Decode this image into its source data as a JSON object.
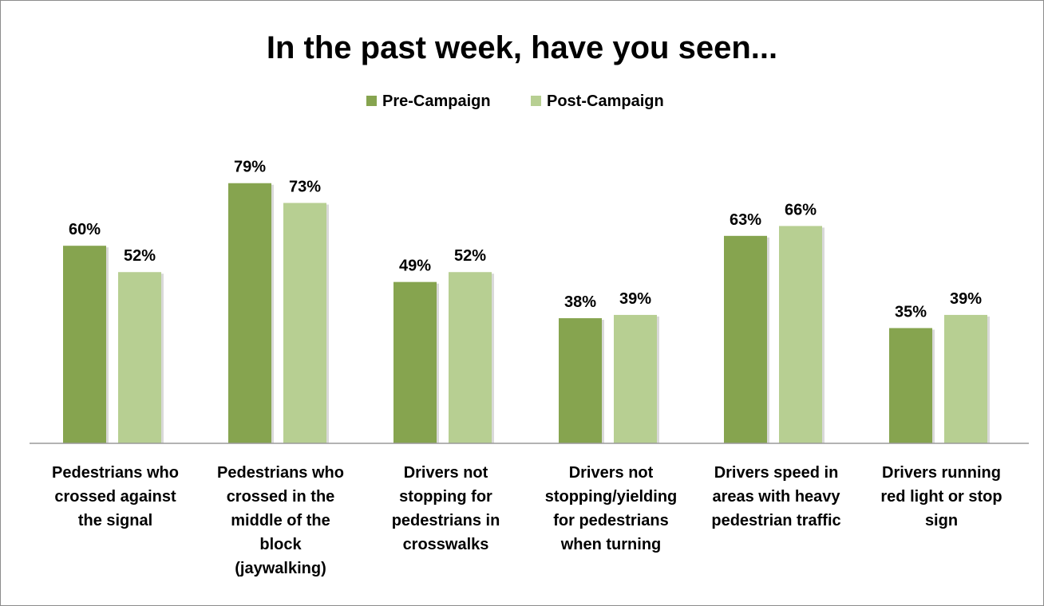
{
  "chart_data": {
    "type": "bar",
    "title": "In the past week, have you seen...",
    "xlabel": "",
    "ylabel": "",
    "ylim": [
      0,
      100
    ],
    "grid": false,
    "legend_position": "top",
    "value_suffix": "%",
    "categories": [
      "Pedestrians who crossed against the signal",
      "Pedestrians who crossed in the middle of the block (jaywalking)",
      "Drivers not stopping for pedestrians in crosswalks",
      "Drivers not stopping/yielding for pedestrians when turning",
      "Drivers speed in areas with heavy pedestrian traffic",
      "Drivers running red light or stop sign"
    ],
    "category_lines": [
      [
        "Pedestrians who",
        "crossed against",
        "the signal"
      ],
      [
        "Pedestrians who",
        "crossed in the",
        "middle of the",
        "block",
        "(jaywalking)"
      ],
      [
        "Drivers not",
        "stopping for",
        "pedestrians in",
        "crosswalks"
      ],
      [
        "Drivers not",
        "stopping/yielding",
        "for pedestrians",
        "when turning"
      ],
      [
        "Drivers speed in",
        "areas with heavy",
        "pedestrian traffic"
      ],
      [
        "Drivers running",
        "red light or stop",
        "sign"
      ]
    ],
    "series": [
      {
        "name": "Pre-Campaign",
        "color": "#86a44f",
        "values": [
          60,
          79,
          49,
          38,
          63,
          35
        ]
      },
      {
        "name": "Post-Campaign",
        "color": "#b7cf92",
        "values": [
          52,
          73,
          52,
          39,
          66,
          39
        ]
      }
    ]
  }
}
